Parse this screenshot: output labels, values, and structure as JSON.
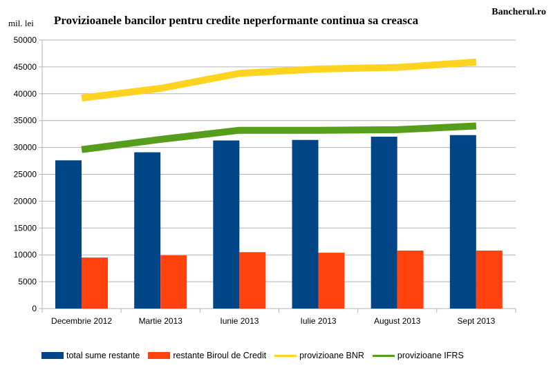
{
  "brand": "Bancherul.ro",
  "chart_data": {
    "type": "bar",
    "title": "Provizioanele bancilor pentru credite neperformante continua sa creasca",
    "ylabel": "mil. lei",
    "xlabel": "",
    "ylim": [
      0,
      50000
    ],
    "yticks": [
      0,
      5000,
      10000,
      15000,
      20000,
      25000,
      30000,
      35000,
      40000,
      45000,
      50000
    ],
    "grid": true,
    "legend_position": "bottom",
    "categories": [
      "Decembrie 2012",
      "Martie 2013",
      "Iunie 2013",
      "Iulie 2013",
      "August 2013",
      "Sept 2013"
    ],
    "series": [
      {
        "name": "total sume restante",
        "kind": "bar",
        "color": "#004586",
        "values": [
          27600,
          29100,
          31300,
          31400,
          32000,
          32300
        ]
      },
      {
        "name": "restante Biroul de Credit",
        "kind": "bar",
        "color": "#ff420e",
        "values": [
          9500,
          9900,
          10500,
          10400,
          10800,
          10800
        ]
      },
      {
        "name": "provizioane BNR",
        "kind": "line",
        "color": "#ffd320",
        "values": [
          39200,
          41000,
          43800,
          44600,
          44900,
          45900
        ]
      },
      {
        "name": "provizioane IFRS",
        "kind": "line",
        "color": "#579d1c",
        "values": [
          29600,
          31500,
          33200,
          33200,
          33300,
          34000
        ]
      }
    ]
  }
}
